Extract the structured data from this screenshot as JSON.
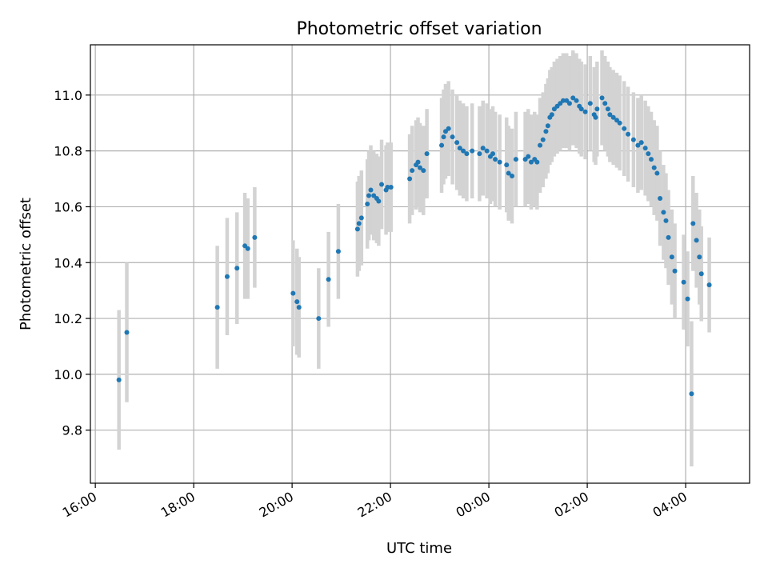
{
  "colors": {
    "points": "#1f77b4",
    "errorbars": "#d3d3d3",
    "grid": "#b0b0b0"
  },
  "chart_data": {
    "type": "scatter",
    "title": "Photometric offset variation",
    "xlabel": "UTC time",
    "ylabel": "Photometric offset",
    "grid": true,
    "legend": "none",
    "x_unit": "hours since 16:00 UTC (labels shown as clock time)",
    "xlim": [
      -0.1,
      13.3
    ],
    "ylim": [
      9.61,
      11.18
    ],
    "xticks": [
      0,
      2,
      4,
      6,
      8,
      10,
      12
    ],
    "xtick_labels": [
      "16:00",
      "18:00",
      "20:00",
      "22:00",
      "00:00",
      "02:00",
      "04:00"
    ],
    "yticks": [
      9.8,
      10.0,
      10.2,
      10.4,
      10.6,
      10.8,
      11.0
    ],
    "ytick_labels": [
      "9.8",
      "10.0",
      "10.2",
      "10.4",
      "10.6",
      "10.8",
      "11.0"
    ],
    "series": [
      {
        "x": [
          0.48,
          0.64,
          2.48,
          2.68,
          2.88,
          3.04,
          3.1,
          3.24,
          4.02,
          4.1,
          4.14,
          4.54,
          4.74,
          4.94,
          5.33,
          5.36,
          5.41,
          5.53,
          5.56,
          5.6,
          5.66,
          5.72,
          5.76,
          5.82,
          5.91,
          5.94,
          6.01,
          6.39,
          6.44,
          6.52,
          6.56,
          6.6,
          6.67,
          6.74,
          7.04,
          7.08,
          7.12,
          7.18,
          7.26,
          7.35,
          7.41,
          7.48,
          7.55,
          7.66,
          7.81,
          7.88,
          7.96,
          8.03,
          8.08,
          8.13,
          8.22,
          8.36,
          8.4,
          8.47,
          8.55,
          8.74,
          8.8,
          8.86,
          8.93,
          8.98,
          9.04,
          9.1,
          9.16,
          9.2,
          9.24,
          9.28,
          9.33,
          9.39,
          9.45,
          9.51,
          9.58,
          9.64,
          9.71,
          9.78,
          9.84,
          9.88,
          9.96,
          10.06,
          10.14,
          10.17,
          10.2,
          10.3,
          10.36,
          10.42,
          10.46,
          10.53,
          10.6,
          10.66,
          10.75,
          10.83,
          10.94,
          11.03,
          11.1,
          11.18,
          11.24,
          11.3,
          11.36,
          11.42,
          11.48,
          11.55,
          11.6,
          11.65,
          11.72,
          11.78,
          11.96,
          12.04,
          12.12,
          12.15,
          12.22,
          12.28,
          12.32,
          12.48
        ],
        "y": [
          9.98,
          10.15,
          10.24,
          10.35,
          10.38,
          10.46,
          10.45,
          10.49,
          10.29,
          10.26,
          10.24,
          10.2,
          10.34,
          10.44,
          10.52,
          10.54,
          10.56,
          10.61,
          10.64,
          10.66,
          10.64,
          10.63,
          10.62,
          10.68,
          10.66,
          10.67,
          10.67,
          10.7,
          10.73,
          10.75,
          10.76,
          10.74,
          10.73,
          10.79,
          10.82,
          10.85,
          10.87,
          10.88,
          10.85,
          10.83,
          10.81,
          10.8,
          10.79,
          10.8,
          10.79,
          10.81,
          10.8,
          10.78,
          10.79,
          10.77,
          10.76,
          10.75,
          10.72,
          10.71,
          10.77,
          10.77,
          10.78,
          10.76,
          10.77,
          10.76,
          10.82,
          10.84,
          10.87,
          10.89,
          10.92,
          10.93,
          10.95,
          10.96,
          10.97,
          10.98,
          10.98,
          10.97,
          10.99,
          10.98,
          10.96,
          10.95,
          10.94,
          10.97,
          10.93,
          10.92,
          10.95,
          10.99,
          10.97,
          10.95,
          10.93,
          10.92,
          10.91,
          10.9,
          10.88,
          10.86,
          10.84,
          10.82,
          10.83,
          10.81,
          10.79,
          10.77,
          10.74,
          10.72,
          10.63,
          10.58,
          10.55,
          10.49,
          10.42,
          10.37,
          10.33,
          10.27,
          9.93,
          10.54,
          10.48,
          10.42,
          10.36,
          10.32
        ],
        "err": [
          0.25,
          0.25,
          0.22,
          0.21,
          0.2,
          0.19,
          0.18,
          0.18,
          0.19,
          0.19,
          0.18,
          0.18,
          0.17,
          0.17,
          0.17,
          0.17,
          0.17,
          0.16,
          0.16,
          0.16,
          0.16,
          0.16,
          0.16,
          0.16,
          0.16,
          0.16,
          0.16,
          0.16,
          0.16,
          0.16,
          0.16,
          0.16,
          0.16,
          0.16,
          0.17,
          0.17,
          0.17,
          0.17,
          0.17,
          0.17,
          0.17,
          0.17,
          0.17,
          0.17,
          0.17,
          0.17,
          0.17,
          0.17,
          0.17,
          0.17,
          0.17,
          0.17,
          0.17,
          0.17,
          0.17,
          0.17,
          0.17,
          0.17,
          0.17,
          0.17,
          0.17,
          0.17,
          0.17,
          0.17,
          0.17,
          0.17,
          0.17,
          0.17,
          0.17,
          0.17,
          0.17,
          0.17,
          0.17,
          0.17,
          0.17,
          0.17,
          0.17,
          0.17,
          0.17,
          0.17,
          0.17,
          0.17,
          0.17,
          0.17,
          0.17,
          0.17,
          0.17,
          0.17,
          0.17,
          0.17,
          0.17,
          0.17,
          0.17,
          0.17,
          0.17,
          0.17,
          0.17,
          0.17,
          0.17,
          0.17,
          0.17,
          0.17,
          0.17,
          0.17,
          0.17,
          0.17,
          0.26,
          0.17,
          0.17,
          0.17,
          0.17,
          0.17
        ]
      }
    ]
  }
}
